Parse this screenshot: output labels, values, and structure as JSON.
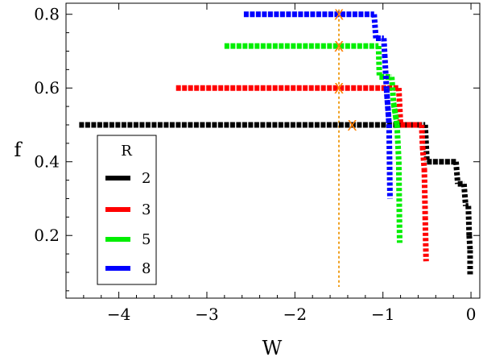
{
  "chart_data": {
    "type": "line",
    "xlabel": "W",
    "ylabel": "f",
    "xlim": [
      -4.6,
      0.1
    ],
    "ylim": [
      0.03,
      0.83
    ],
    "xticks": [
      {
        "value": -4,
        "label": "−4"
      },
      {
        "value": -3,
        "label": "−3"
      },
      {
        "value": -2,
        "label": "−2"
      },
      {
        "value": -1,
        "label": "−1"
      },
      {
        "value": 0,
        "label": "0"
      }
    ],
    "yticks": [
      {
        "value": 0.2,
        "label": "0.2"
      },
      {
        "value": 0.4,
        "label": "0.4"
      },
      {
        "value": 0.6,
        "label": "0.6"
      },
      {
        "value": 0.8,
        "label": "0.8"
      }
    ],
    "legend": {
      "title": "R",
      "position": "lower-left",
      "entries": [
        {
          "label": "2",
          "color": "#000000"
        },
        {
          "label": "3",
          "color": "#ff0000"
        },
        {
          "label": "5",
          "color": "#00ee00"
        },
        {
          "label": "8",
          "color": "#0000ff"
        }
      ]
    },
    "series": [
      {
        "name": "2",
        "color": "#000000",
        "segments": [
          {
            "x": [
              -4.45,
              -0.52
            ],
            "y": [
              0.5,
              0.5
            ]
          },
          {
            "x": [
              -0.52,
              -0.5
            ],
            "y": [
              0.5,
              0.4
            ]
          },
          {
            "x": [
              -0.5,
              -0.17
            ],
            "y": [
              0.4,
              0.4
            ]
          },
          {
            "x": [
              -0.17,
              -0.15
            ],
            "y": [
              0.4,
              0.34
            ]
          },
          {
            "x": [
              -0.15,
              -0.08
            ],
            "y": [
              0.34,
              0.34
            ]
          },
          {
            "x": [
              -0.08,
              -0.06
            ],
            "y": [
              0.34,
              0.28
            ]
          },
          {
            "x": [
              -0.06,
              -0.03
            ],
            "y": [
              0.28,
              0.28
            ]
          },
          {
            "x": [
              -0.03,
              -0.02
            ],
            "y": [
              0.28,
              0.2
            ]
          },
          {
            "x": [
              -0.02,
              -0.01
            ],
            "y": [
              0.2,
              0.16
            ]
          },
          {
            "x": [
              -0.01,
              -0.01
            ],
            "y": [
              0.16,
              0.09
            ]
          }
        ]
      },
      {
        "name": "3",
        "color": "#ff0000",
        "segments": [
          {
            "x": [
              -3.35,
              -0.82
            ],
            "y": [
              0.6,
              0.6
            ]
          },
          {
            "x": [
              -0.82,
              -0.8
            ],
            "y": [
              0.6,
              0.5
            ]
          },
          {
            "x": [
              -0.8,
              -0.56
            ],
            "y": [
              0.5,
              0.5
            ]
          },
          {
            "x": [
              -0.56,
              -0.55
            ],
            "y": [
              0.5,
              0.44
            ]
          },
          {
            "x": [
              -0.55,
              -0.53
            ],
            "y": [
              0.44,
              0.38
            ]
          },
          {
            "x": [
              -0.53,
              -0.52
            ],
            "y": [
              0.38,
              0.25
            ]
          },
          {
            "x": [
              -0.52,
              -0.51
            ],
            "y": [
              0.25,
              0.13
            ]
          }
        ]
      },
      {
        "name": "5",
        "color": "#00ee00",
        "segments": [
          {
            "x": [
              -2.8,
              -1.05
            ],
            "y": [
              0.714,
              0.714
            ]
          },
          {
            "x": [
              -1.05,
              -1.04
            ],
            "y": [
              0.714,
              0.63
            ]
          },
          {
            "x": [
              -1.04,
              -0.9
            ],
            "y": [
              0.63,
              0.63
            ]
          },
          {
            "x": [
              -0.9,
              -0.88
            ],
            "y": [
              0.63,
              0.56
            ]
          },
          {
            "x": [
              -0.88,
              -0.84
            ],
            "y": [
              0.56,
              0.5
            ]
          },
          {
            "x": [
              -0.84,
              -0.82
            ],
            "y": [
              0.5,
              0.4
            ]
          },
          {
            "x": [
              -0.82,
              -0.81
            ],
            "y": [
              0.4,
              0.18
            ]
          }
        ]
      },
      {
        "name": "8",
        "color": "#0000ff",
        "segments": [
          {
            "x": [
              -2.58,
              -1.1
            ],
            "y": [
              0.8,
              0.8
            ]
          },
          {
            "x": [
              -1.1,
              -1.08
            ],
            "y": [
              0.8,
              0.735
            ]
          },
          {
            "x": [
              -1.08,
              -0.99
            ],
            "y": [
              0.735,
              0.735
            ]
          },
          {
            "x": [
              -0.99,
              -0.98
            ],
            "y": [
              0.735,
              0.69
            ]
          },
          {
            "x": [
              -0.98,
              -0.96
            ],
            "y": [
              0.69,
              0.6
            ]
          },
          {
            "x": [
              -0.96,
              -0.93
            ],
            "y": [
              0.6,
              0.5
            ]
          },
          {
            "x": [
              -0.93,
              -0.92
            ],
            "y": [
              0.5,
              0.3
            ]
          }
        ]
      }
    ],
    "reference_line": {
      "x": -1.5,
      "color": "#f0a020",
      "style": "dotted"
    },
    "markers": [
      {
        "x": -1.5,
        "y": 0.8,
        "label": "X",
        "color": "#ff8000"
      },
      {
        "x": -1.5,
        "y": 0.714,
        "label": "X",
        "color": "#ff8000"
      },
      {
        "x": -1.5,
        "y": 0.6,
        "label": "X",
        "color": "#ff8000"
      },
      {
        "x": -1.35,
        "y": 0.5,
        "label": "X",
        "color": "#ff8000"
      }
    ]
  }
}
